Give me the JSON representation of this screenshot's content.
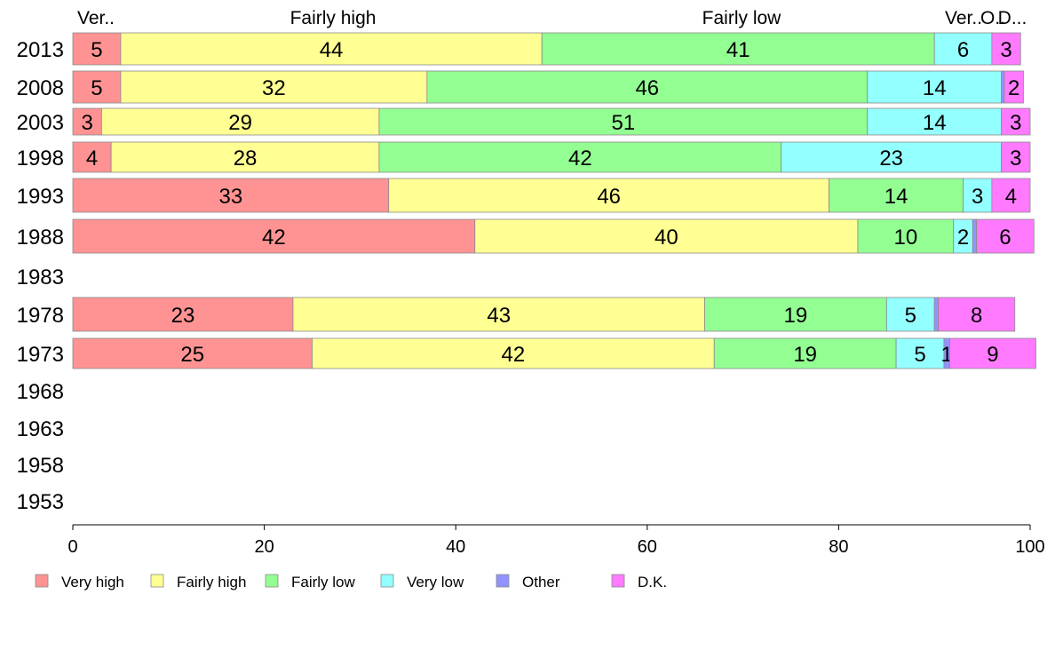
{
  "chart_data": {
    "type": "bar",
    "orientation": "horizontal",
    "stacked": true,
    "categories": [
      "2013",
      "2008",
      "2003",
      "1998",
      "1993",
      "1988",
      "1983",
      "1978",
      "1973",
      "1968",
      "1963",
      "1958",
      "1953"
    ],
    "series": [
      {
        "name": "Very high",
        "color": "#ff9393",
        "values": [
          5,
          5,
          3,
          4,
          33,
          42,
          null,
          23,
          25,
          null,
          null,
          null,
          null
        ]
      },
      {
        "name": "Fairly high",
        "color": "#ffff93",
        "values": [
          44,
          32,
          29,
          28,
          46,
          40,
          null,
          43,
          42,
          null,
          null,
          null,
          null
        ]
      },
      {
        "name": "Fairly low",
        "color": "#93ff93",
        "values": [
          41,
          46,
          51,
          42,
          14,
          10,
          null,
          19,
          19,
          null,
          null,
          null,
          null
        ]
      },
      {
        "name": "Very low",
        "color": "#93ffff",
        "values": [
          6,
          14,
          14,
          23,
          3,
          2,
          null,
          5,
          5,
          null,
          null,
          null,
          null
        ]
      },
      {
        "name": "Other",
        "color": "#9393ff",
        "values": [
          0,
          0.3,
          0,
          0,
          0,
          0.4,
          null,
          0.4,
          0.6,
          null,
          null,
          null,
          null
        ]
      },
      {
        "name": "D.K.",
        "color": "#ff7aff",
        "values": [
          3,
          2,
          3,
          3,
          4,
          6,
          null,
          8,
          9,
          null,
          null,
          null,
          null
        ]
      }
    ],
    "data_labels": [
      [
        "5",
        "44",
        "41",
        "6",
        "",
        "3"
      ],
      [
        "5",
        "32",
        "46",
        "14",
        "",
        "2"
      ],
      [
        "3",
        "29",
        "51",
        "14",
        "",
        "3"
      ],
      [
        "4",
        "28",
        "42",
        "23",
        "",
        "3"
      ],
      [
        "33",
        "46",
        "14",
        "3",
        "",
        "4"
      ],
      [
        "42",
        "40",
        "10",
        "2",
        "",
        "6"
      ],
      [
        "",
        "",
        "",
        "",
        "",
        ""
      ],
      [
        "23",
        "43",
        "19",
        "5",
        "",
        "8"
      ],
      [
        "25",
        "42",
        "19",
        "5",
        "1",
        "9"
      ],
      [
        "",
        "",
        "",
        "",
        "",
        ""
      ],
      [
        "",
        "",
        "",
        "",
        "",
        ""
      ],
      [
        "",
        "",
        "",
        "",
        "",
        ""
      ],
      [
        "",
        "",
        "",
        "",
        "",
        ""
      ]
    ],
    "top_labels": [
      "Ver..",
      "Fairly high",
      "Fairly low",
      "Ver..",
      "O..",
      "D..."
    ],
    "xlim": [
      0,
      100
    ],
    "xticks": [
      "0",
      "20",
      "40",
      "60",
      "80",
      "100"
    ],
    "grid": false,
    "legend": {
      "position": "bottom-left",
      "items": [
        "Very high",
        "Fairly high",
        "Fairly low",
        "Very low",
        "Other",
        "D.K."
      ]
    }
  }
}
